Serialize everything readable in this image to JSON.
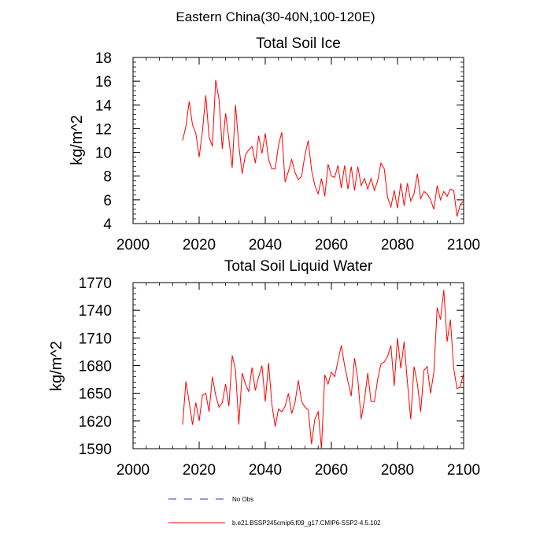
{
  "figure": {
    "main_title": "Eastern China(30-40N,100-120E)"
  },
  "legend": {
    "obs_label": "No Obs",
    "model_label": "b.e21.BSSP245cmip6.f09_g17.CMIP6-SSP2-4.5.102",
    "obs_color": "#3333cc",
    "model_color": "#ff0000"
  },
  "chart_data": [
    {
      "type": "line",
      "title": "Total Soil Ice",
      "xlabel": "",
      "ylabel": "kg/m^2",
      "xlim": [
        2000,
        2100
      ],
      "ylim": [
        4,
        18
      ],
      "xticks": [
        2000,
        2020,
        2040,
        2060,
        2080,
        2100
      ],
      "yticks": [
        4,
        6,
        8,
        10,
        12,
        14,
        16,
        18
      ],
      "grid": false,
      "series": [
        {
          "color": "#ff0000",
          "x": [
            2015,
            2016,
            2017,
            2018,
            2019,
            2020,
            2021,
            2022,
            2023,
            2024,
            2025,
            2026,
            2027,
            2028,
            2029,
            2030,
            2031,
            2032,
            2033,
            2034,
            2035,
            2036,
            2037,
            2038,
            2039,
            2040,
            2041,
            2042,
            2043,
            2044,
            2045,
            2046,
            2047,
            2048,
            2049,
            2050,
            2051,
            2052,
            2053,
            2054,
            2055,
            2056,
            2057,
            2058,
            2059,
            2060,
            2061,
            2062,
            2063,
            2064,
            2065,
            2066,
            2067,
            2068,
            2069,
            2070,
            2071,
            2072,
            2073,
            2074,
            2075,
            2076,
            2077,
            2078,
            2079,
            2080,
            2081,
            2082,
            2083,
            2084,
            2085,
            2086,
            2087,
            2088,
            2089,
            2090,
            2091,
            2092,
            2093,
            2094,
            2095,
            2096,
            2097,
            2098,
            2099,
            2100
          ],
          "values": [
            11.0,
            12.2,
            14.3,
            12.3,
            11.6,
            9.6,
            11.8,
            14.8,
            11.3,
            10.5,
            16.1,
            14.5,
            10.3,
            13.3,
            11.1,
            8.7,
            14.0,
            10.6,
            8.2,
            9.8,
            10.2,
            10.5,
            9.1,
            11.4,
            9.9,
            11.6,
            9.4,
            8.6,
            8.6,
            10.6,
            11.7,
            7.5,
            8.4,
            9.4,
            8.3,
            7.7,
            8.0,
            9.8,
            11.0,
            8.5,
            7.2,
            6.5,
            7.8,
            6.3,
            9.0,
            8.0,
            7.9,
            8.9,
            7.0,
            8.9,
            6.9,
            8.8,
            6.8,
            8.8,
            7.2,
            7.8,
            6.9,
            7.8,
            6.8,
            7.6,
            9.1,
            8.6,
            6.2,
            5.4,
            6.8,
            5.3,
            7.4,
            5.5,
            7.4,
            5.9,
            6.5,
            8.2,
            6.1,
            6.7,
            6.5,
            6.0,
            5.2,
            7.2,
            6.0,
            6.7,
            6.3,
            6.9,
            6.8,
            4.6,
            5.6,
            5.9
          ]
        }
      ]
    },
    {
      "type": "line",
      "title": "Total Soil Liquid Water",
      "xlabel": "",
      "ylabel": "kg/m^2",
      "xlim": [
        2000,
        2100
      ],
      "ylim": [
        1590,
        1770
      ],
      "xticks": [
        2000,
        2020,
        2040,
        2060,
        2080,
        2100
      ],
      "yticks": [
        1590,
        1620,
        1650,
        1680,
        1710,
        1740,
        1770
      ],
      "grid": false,
      "series": [
        {
          "color": "#ff0000",
          "x": [
            2015,
            2016,
            2017,
            2018,
            2019,
            2020,
            2021,
            2022,
            2023,
            2024,
            2025,
            2026,
            2027,
            2028,
            2029,
            2030,
            2031,
            2032,
            2033,
            2034,
            2035,
            2036,
            2037,
            2038,
            2039,
            2040,
            2041,
            2042,
            2043,
            2044,
            2045,
            2046,
            2047,
            2048,
            2049,
            2050,
            2051,
            2052,
            2053,
            2054,
            2055,
            2056,
            2057,
            2058,
            2059,
            2060,
            2061,
            2062,
            2063,
            2064,
            2065,
            2066,
            2067,
            2068,
            2069,
            2070,
            2071,
            2072,
            2073,
            2074,
            2075,
            2076,
            2077,
            2078,
            2079,
            2080,
            2081,
            2082,
            2083,
            2084,
            2085,
            2086,
            2087,
            2088,
            2089,
            2090,
            2091,
            2092,
            2093,
            2094,
            2095,
            2096,
            2097,
            2098,
            2099,
            2100
          ],
          "values": [
            1616,
            1663,
            1640,
            1616,
            1640,
            1620,
            1648,
            1650,
            1630,
            1668,
            1648,
            1635,
            1640,
            1660,
            1636,
            1691,
            1675,
            1616,
            1672,
            1660,
            1652,
            1678,
            1653,
            1668,
            1680,
            1641,
            1683,
            1638,
            1614,
            1633,
            1630,
            1636,
            1650,
            1628,
            1640,
            1664,
            1641,
            1635,
            1632,
            1595,
            1622,
            1630,
            1590,
            1670,
            1660,
            1673,
            1668,
            1685,
            1702,
            1680,
            1663,
            1647,
            1688,
            1665,
            1622,
            1643,
            1672,
            1641,
            1641,
            1665,
            1682,
            1684,
            1690,
            1702,
            1658,
            1710,
            1677,
            1706,
            1662,
            1622,
            1679,
            1661,
            1630,
            1675,
            1679,
            1650,
            1673,
            1743,
            1730,
            1762,
            1706,
            1730,
            1677,
            1655,
            1657,
            1672
          ]
        }
      ]
    }
  ]
}
